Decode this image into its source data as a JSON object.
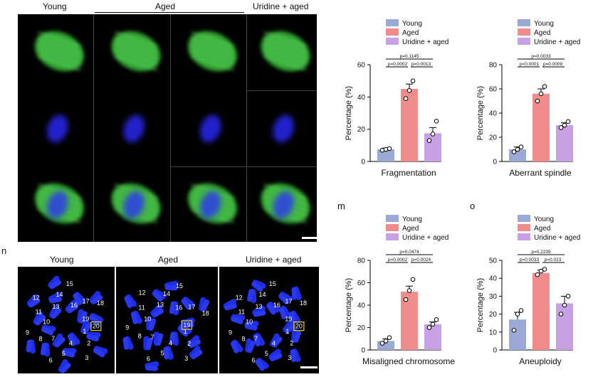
{
  "microscopy": {
    "col_labels": {
      "young": "Young",
      "aged": "Aged",
      "uridine": "Uridine + aged"
    },
    "colors": {
      "tubulin": "#3ec63e",
      "dna": "#2a2aff",
      "background": "#000000"
    }
  },
  "chromosome_panel": {
    "letter": "n",
    "titles": [
      "Young",
      "Aged",
      "Uridine + aged"
    ],
    "young_numbers": [
      "1",
      "2",
      "3",
      "4",
      "5",
      "6",
      "7",
      "8",
      "9",
      "10",
      "11",
      "12",
      "13",
      "14",
      "15",
      "16",
      "17",
      "18",
      "19",
      "20"
    ],
    "young_boxed": "20",
    "aged_numbers": [
      "1",
      "2",
      "3",
      "4",
      "5",
      "6",
      "7",
      "8",
      "9",
      "10",
      "11",
      "12",
      "13",
      "14",
      "15",
      "16",
      "17",
      "18",
      "19"
    ],
    "aged_boxed": "19",
    "uridine_numbers": [
      "1",
      "2",
      "3",
      "4",
      "5",
      "6",
      "7",
      "8",
      "9",
      "10",
      "11",
      "12",
      "13",
      "14",
      "15",
      "16",
      "17",
      "18",
      "19",
      "20"
    ],
    "uridine_boxed": "20"
  },
  "panel_letters": {
    "m": "m",
    "o": "o"
  },
  "chart_data": [
    {
      "type": "bar",
      "xlabel": "Fragmentation",
      "ylabel": "Percentage (%)",
      "ylim": [
        0,
        60
      ],
      "yticks": [
        "0",
        "20",
        "40",
        "60"
      ],
      "categories": [
        "Young",
        "Aged",
        "Uridine + aged"
      ],
      "values": [
        7.5,
        45,
        17.5
      ],
      "errors": [
        0.8,
        3,
        3.5
      ],
      "points": [
        [
          7,
          7.5,
          8
        ],
        [
          39,
          44,
          50
        ],
        [
          13,
          17,
          25
        ]
      ],
      "colors": [
        "#9aaad4",
        "#f08c8c",
        "#c8a0e4"
      ],
      "legend": [
        "Young",
        "Aged",
        "Uridine + aged"
      ],
      "pvalues": {
        "outer": "p=0.1145",
        "left": "p=0.0002",
        "right": "p=0.0013"
      }
    },
    {
      "type": "bar",
      "xlabel": "Aberrant spindle",
      "ylabel": "Percentage (%)",
      "ylim": [
        0,
        80
      ],
      "yticks": [
        "0",
        "20",
        "40",
        "60",
        "80"
      ],
      "categories": [
        "Young",
        "Aged",
        "Uridine + aged"
      ],
      "values": [
        10,
        56,
        30
      ],
      "errors": [
        2,
        4,
        2
      ],
      "points": [
        [
          8,
          10,
          12
        ],
        [
          50,
          56,
          62
        ],
        [
          28,
          30,
          33
        ]
      ],
      "colors": [
        "#9aaad4",
        "#f08c8c",
        "#c8a0e4"
      ],
      "legend": [
        "Young",
        "Aged",
        "Uridine + aged"
      ],
      "pvalues": {
        "outer": "p=0.0033",
        "left": "p<0.0001",
        "right": "p=0.0009"
      }
    },
    {
      "type": "bar",
      "xlabel": "Misaligned chromosome",
      "ylabel": "Percentage (%)",
      "ylim": [
        0,
        80
      ],
      "yticks": [
        "0",
        "20",
        "40",
        "60",
        "80"
      ],
      "categories": [
        "Young",
        "Aged",
        "Uridine + aged"
      ],
      "values": [
        8,
        52,
        23
      ],
      "errors": [
        2,
        5,
        2
      ],
      "points": [
        [
          6,
          8,
          11
        ],
        [
          45,
          53,
          63
        ],
        [
          20,
          23,
          27
        ]
      ],
      "colors": [
        "#9aaad4",
        "#f08c8c",
        "#c8a0e4"
      ],
      "legend": [
        "Young",
        "Aged",
        "Uridine + aged"
      ],
      "pvalues": {
        "outer": "p=0.0474",
        "left": "p=0.0002",
        "right": "p=0.0024"
      }
    },
    {
      "type": "bar",
      "xlabel": "Aneuploidy",
      "ylabel": "Percentage (%)",
      "ylim": [
        0,
        50
      ],
      "yticks": [
        "0",
        "10",
        "20",
        "30",
        "40",
        "50"
      ],
      "categories": [
        "Young",
        "Aged",
        "Uridine + aged"
      ],
      "values": [
        17,
        43,
        26
      ],
      "errors": [
        4,
        1.5,
        4
      ],
      "points": [
        [
          11,
          20,
          22
        ],
        [
          42,
          44,
          45
        ],
        [
          20,
          25,
          30
        ]
      ],
      "colors": [
        "#9aaad4",
        "#f08c8c",
        "#c8a0e4"
      ],
      "legend": [
        "Young",
        "Aged",
        "Uridine + aged"
      ],
      "pvalues": {
        "outer": "p=0.2235",
        "left": "p=0.0033",
        "right": "p=0.023"
      }
    }
  ]
}
